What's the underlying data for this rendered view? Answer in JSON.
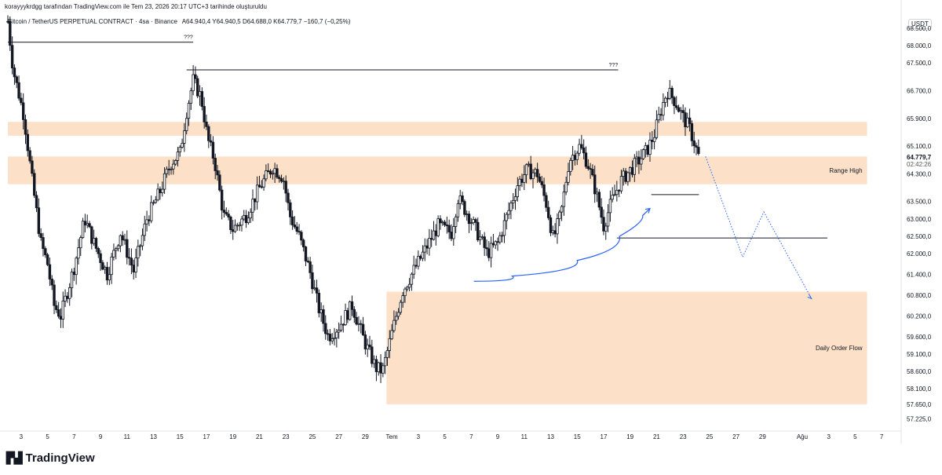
{
  "header": {
    "attribution": "korayyykrdgg tarafından TradingView.com ile Tem 23, 2026 20:17 UTC+3 tarihinde oluşturuldu",
    "symbol": "Bitcoin / TetherUS PERPETUAL CONTRACT · 4sa · Binance",
    "ohlc": "A64.940,4  Y64.940,5  D64.688,0  K64.779,7  −160,7 (−0,25%)"
  },
  "price_axis": {
    "currency": "USDT",
    "last_price": "64.779,7",
    "countdown": "02:42:26"
  },
  "branding": {
    "logo_text": "TradingView"
  },
  "colors": {
    "candle": "#131722",
    "zone": "#f9c89b",
    "zone_opacity": "0.55",
    "curve": "#2962ff",
    "projection": "#2962ff"
  },
  "chart_data": {
    "type": "candlestick",
    "title": "Bitcoin / TetherUS PERPETUAL CONTRACT · 4sa · Binance",
    "y_axis_position": "right",
    "ylim": [
      56900,
      69000
    ],
    "y_ticks": [
      {
        "v": 68500,
        "label": "68.500,0"
      },
      {
        "v": 68000,
        "label": "68.000,0"
      },
      {
        "v": 67500,
        "label": "67.500,0"
      },
      {
        "v": 66700,
        "label": "66.700,0"
      },
      {
        "v": 65900,
        "label": "65.900,0"
      },
      {
        "v": 65100,
        "label": "65.100,0"
      },
      {
        "v": 64300,
        "label": "64.300,0"
      },
      {
        "v": 63500,
        "label": "63.500,0"
      },
      {
        "v": 63000,
        "label": "63.000,0"
      },
      {
        "v": 62500,
        "label": "62.500,0"
      },
      {
        "v": 62000,
        "label": "62.000,0"
      },
      {
        "v": 61400,
        "label": "61.400,0"
      },
      {
        "v": 60800,
        "label": "60.800,0"
      },
      {
        "v": 60200,
        "label": "60.200,0"
      },
      {
        "v": 59600,
        "label": "59.600,0"
      },
      {
        "v": 59100,
        "label": "59.100,0"
      },
      {
        "v": 58600,
        "label": "58.600,0"
      },
      {
        "v": 58100,
        "label": "58.100,0"
      },
      {
        "v": 57650,
        "label": "57.650,0"
      },
      {
        "v": 57225,
        "label": "57.225,0"
      }
    ],
    "x_ticks": [
      {
        "d": 2,
        "label": "3"
      },
      {
        "d": 4,
        "label": "5"
      },
      {
        "d": 6,
        "label": "7"
      },
      {
        "d": 8,
        "label": "9"
      },
      {
        "d": 10,
        "label": "11"
      },
      {
        "d": 12,
        "label": "13"
      },
      {
        "d": 14,
        "label": "15"
      },
      {
        "d": 16,
        "label": "17"
      },
      {
        "d": 18,
        "label": "19"
      },
      {
        "d": 20,
        "label": "21"
      },
      {
        "d": 22,
        "label": "23"
      },
      {
        "d": 24,
        "label": "25"
      },
      {
        "d": 26,
        "label": "27"
      },
      {
        "d": 28,
        "label": "29"
      },
      {
        "d": 30,
        "label": "Tem"
      },
      {
        "d": 32,
        "label": "3"
      },
      {
        "d": 34,
        "label": "5"
      },
      {
        "d": 36,
        "label": "7"
      },
      {
        "d": 38,
        "label": "9"
      },
      {
        "d": 40,
        "label": "11"
      },
      {
        "d": 42,
        "label": "13"
      },
      {
        "d": 44,
        "label": "15"
      },
      {
        "d": 46,
        "label": "17"
      },
      {
        "d": 48,
        "label": "19"
      },
      {
        "d": 50,
        "label": "21"
      },
      {
        "d": 52,
        "label": "23"
      },
      {
        "d": 54,
        "label": "25"
      },
      {
        "d": 56,
        "label": "27"
      },
      {
        "d": 58,
        "label": "29"
      },
      {
        "d": 61,
        "label": "Ağu"
      },
      {
        "d": 63,
        "label": "3"
      },
      {
        "d": 65,
        "label": "5"
      },
      {
        "d": 67,
        "label": "7"
      }
    ],
    "x_range": [
      1,
      68
    ],
    "candles_end_d": 53.2,
    "price_path": [
      [
        1.0,
        68700
      ],
      [
        1.4,
        67300
      ],
      [
        2.2,
        66000
      ],
      [
        2.8,
        64200
      ],
      [
        3.5,
        62300
      ],
      [
        4.0,
        61700
      ],
      [
        4.5,
        60500
      ],
      [
        5.0,
        60200
      ],
      [
        6.0,
        61600
      ],
      [
        6.8,
        63000
      ],
      [
        7.5,
        62300
      ],
      [
        8.5,
        61400
      ],
      [
        9.5,
        62600
      ],
      [
        10.5,
        61500
      ],
      [
        11.5,
        63000
      ],
      [
        12.5,
        63800
      ],
      [
        13.3,
        64600
      ],
      [
        14.0,
        64900
      ],
      [
        14.5,
        66100
      ],
      [
        15.0,
        67000
      ],
      [
        15.6,
        66500
      ],
      [
        16.1,
        65300
      ],
      [
        16.6,
        64700
      ],
      [
        17.3,
        63100
      ],
      [
        18.0,
        62700
      ],
      [
        19.0,
        63100
      ],
      [
        20.0,
        63900
      ],
      [
        21.0,
        64500
      ],
      [
        21.8,
        64200
      ],
      [
        22.3,
        63100
      ],
      [
        23.0,
        62500
      ],
      [
        23.8,
        61500
      ],
      [
        24.5,
        60400
      ],
      [
        25.2,
        59600
      ],
      [
        26.0,
        59900
      ],
      [
        27.0,
        60500
      ],
      [
        28.0,
        59400
      ],
      [
        28.8,
        58700
      ],
      [
        29.3,
        58600
      ],
      [
        30.0,
        59700
      ],
      [
        30.8,
        60900
      ],
      [
        31.5,
        61400
      ],
      [
        32.5,
        62100
      ],
      [
        33.5,
        62800
      ],
      [
        34.5,
        62600
      ],
      [
        35.0,
        63600
      ],
      [
        35.8,
        63100
      ],
      [
        36.6,
        62500
      ],
      [
        37.2,
        62000
      ],
      [
        38.0,
        62300
      ],
      [
        38.8,
        63200
      ],
      [
        39.5,
        64000
      ],
      [
        40.2,
        64400
      ],
      [
        41.0,
        64300
      ],
      [
        41.7,
        63400
      ],
      [
        42.2,
        62400
      ],
      [
        42.8,
        63200
      ],
      [
        43.4,
        64700
      ],
      [
        44.2,
        65100
      ],
      [
        44.8,
        64600
      ],
      [
        45.4,
        63800
      ],
      [
        46.0,
        62800
      ],
      [
        46.6,
        63500
      ],
      [
        47.3,
        64100
      ],
      [
        48.0,
        64400
      ],
      [
        48.7,
        64700
      ],
      [
        49.3,
        65000
      ],
      [
        49.8,
        65400
      ],
      [
        50.3,
        66100
      ],
      [
        50.8,
        66700
      ],
      [
        51.4,
        66400
      ],
      [
        51.9,
        66000
      ],
      [
        52.5,
        65600
      ],
      [
        53.2,
        64780
      ]
    ],
    "zones": [
      {
        "name": "upper-zone",
        "d0": 1.0,
        "d1": 65.9,
        "p0": 65400,
        "p1": 65800
      },
      {
        "name": "range-high-zone",
        "d0": 1.0,
        "d1": 65.9,
        "p0": 64000,
        "p1": 64800,
        "label": "Range High"
      },
      {
        "name": "daily-order-flow-zone",
        "d0": 29.6,
        "d1": 65.9,
        "p0": 57650,
        "p1": 60900,
        "label": "Daily Order Flow"
      }
    ],
    "levels": [
      {
        "name": "high-level-left",
        "p": 68100,
        "d0": 1.0,
        "d1": 15.0,
        "label": "???"
      },
      {
        "name": "high-level-mid",
        "p": 67300,
        "d0": 14.5,
        "d1": 47.1,
        "label": "???"
      },
      {
        "name": "low-level-a",
        "p": 63700,
        "d0": 49.6,
        "d1": 53.2
      },
      {
        "name": "low-level-b",
        "p": 62450,
        "d0": 47.0,
        "d1": 62.9
      }
    ],
    "curve": {
      "points": [
        [
          36.2,
          61200
        ],
        [
          42.0,
          61500
        ],
        [
          46.0,
          62100
        ],
        [
          48.4,
          62900
        ],
        [
          49.5,
          63300
        ]
      ]
    },
    "projection": [
      [
        53.7,
        64800
      ],
      [
        56.5,
        61900
      ],
      [
        58.1,
        63200
      ],
      [
        61.7,
        60700
      ]
    ],
    "last_price_label": "64.779,7",
    "countdown_label": "02:42:26"
  }
}
